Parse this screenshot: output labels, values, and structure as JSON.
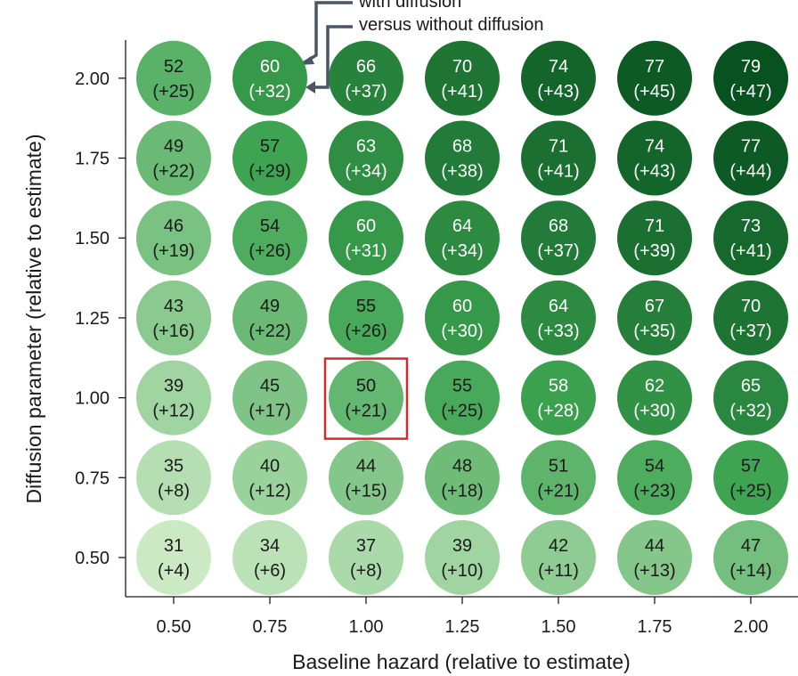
{
  "chart_data": {
    "type": "heatmap",
    "xlabel": "Baseline hazard (relative to estimate)",
    "ylabel": "Diffusion parameter (relative to estimate)",
    "x": [
      "0.50",
      "0.75",
      "1.00",
      "1.25",
      "1.50",
      "1.75",
      "2.00"
    ],
    "y": [
      "0.50",
      "0.75",
      "1.00",
      "1.25",
      "1.50",
      "1.75",
      "2.00"
    ],
    "values": [
      [
        31,
        34,
        37,
        39,
        42,
        44,
        47
      ],
      [
        35,
        40,
        44,
        48,
        51,
        54,
        57
      ],
      [
        39,
        45,
        50,
        55,
        58,
        62,
        65
      ],
      [
        43,
        49,
        55,
        60,
        64,
        67,
        70
      ],
      [
        46,
        54,
        60,
        64,
        68,
        71,
        73
      ],
      [
        49,
        57,
        63,
        68,
        71,
        74,
        77
      ],
      [
        52,
        60,
        66,
        70,
        74,
        77,
        79
      ]
    ],
    "diffs": [
      [
        "(+4)",
        "(+6)",
        "(+8)",
        "(+10)",
        "(+11)",
        "(+13)",
        "(+14)"
      ],
      [
        "(+8)",
        "(+12)",
        "(+15)",
        "(+18)",
        "(+21)",
        "(+23)",
        "(+25)"
      ],
      [
        "(+12)",
        "(+17)",
        "(+21)",
        "(+25)",
        "(+28)",
        "(+30)",
        "(+32)"
      ],
      [
        "(+16)",
        "(+22)",
        "(+26)",
        "(+30)",
        "(+33)",
        "(+35)",
        "(+37)"
      ],
      [
        "(+19)",
        "(+26)",
        "(+31)",
        "(+34)",
        "(+37)",
        "(+39)",
        "(+41)"
      ],
      [
        "(+22)",
        "(+29)",
        "(+34)",
        "(+38)",
        "(+41)",
        "(+43)",
        "(+44)"
      ],
      [
        "(+25)",
        "(+32)",
        "(+37)",
        "(+41)",
        "(+43)",
        "(+45)",
        "(+47)"
      ]
    ],
    "highlight": {
      "x": "1.00",
      "y": "1.00",
      "color": "#d62a2a"
    },
    "annotations": [
      "with diffusion",
      "versus without diffusion"
    ],
    "color_scale": {
      "low_color": "#cbeac4",
      "high_color": "#08521f"
    },
    "grid": false
  }
}
